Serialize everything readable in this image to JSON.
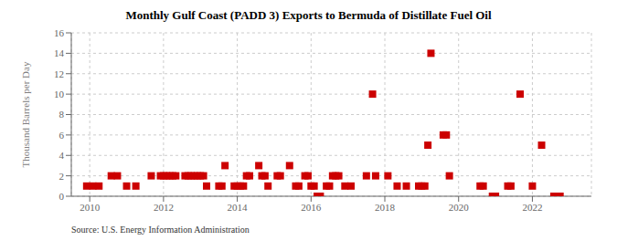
{
  "chart_data": {
    "type": "scatter",
    "title": "Monthly Gulf Coast (PADD 3) Exports to Bermuda of Distillate Fuel Oil",
    "ylabel": "Thousand Barrels per Day",
    "annotation": "Source: U.S. Energy Information Administration",
    "color": "#cc0000",
    "marker": "square",
    "grid": true,
    "ylim": [
      0,
      16
    ],
    "yticks": [
      0,
      2,
      4,
      6,
      8,
      10,
      12,
      14,
      16
    ],
    "xlim": [
      2009.5,
      2023.6
    ],
    "xticks": [
      2010,
      2012,
      2014,
      2016,
      2018,
      2020,
      2022
    ],
    "x": [
      2009.917,
      2010.083,
      2010.25,
      2010.583,
      2010.75,
      2011.0,
      2011.25,
      2011.667,
      2011.917,
      2012.0,
      2012.083,
      2012.167,
      2012.25,
      2012.333,
      2012.583,
      2012.667,
      2012.75,
      2012.833,
      2012.917,
      2013.0,
      2013.083,
      2013.167,
      2013.5,
      2013.583,
      2013.667,
      2013.917,
      2014.0,
      2014.083,
      2014.167,
      2014.25,
      2014.333,
      2014.583,
      2014.667,
      2014.75,
      2014.833,
      2015.083,
      2015.167,
      2015.417,
      2015.583,
      2015.667,
      2015.833,
      2015.917,
      2016.0,
      2016.083,
      2016.167,
      2016.25,
      2016.417,
      2016.5,
      2016.583,
      2016.667,
      2016.75,
      2016.917,
      2017.083,
      2017.5,
      2017.667,
      2017.75,
      2018.083,
      2018.333,
      2018.583,
      2018.917,
      2019.0,
      2019.083,
      2019.167,
      2019.25,
      2019.583,
      2019.667,
      2019.75,
      2020.583,
      2020.667,
      2020.917,
      2021.0,
      2021.333,
      2021.417,
      2021.667,
      2022.0,
      2022.25,
      2022.583,
      2022.667,
      2022.75
    ],
    "values": [
      1,
      1,
      1,
      2,
      2,
      1,
      1,
      2,
      2,
      2,
      2,
      2,
      2,
      2,
      2,
      2,
      2,
      2,
      2,
      2,
      2,
      1,
      1,
      1,
      3,
      1,
      1,
      1,
      1,
      2,
      2,
      3,
      2,
      2,
      1,
      2,
      2,
      3,
      1,
      1,
      2,
      2,
      1,
      1,
      0,
      0,
      1,
      1,
      2,
      2,
      2,
      1,
      1,
      2,
      10,
      2,
      2,
      1,
      1,
      1,
      1,
      1,
      5,
      14,
      6,
      6,
      2,
      1,
      1,
      0,
      0,
      1,
      1,
      10,
      1,
      5,
      0,
      0,
      0
    ]
  }
}
